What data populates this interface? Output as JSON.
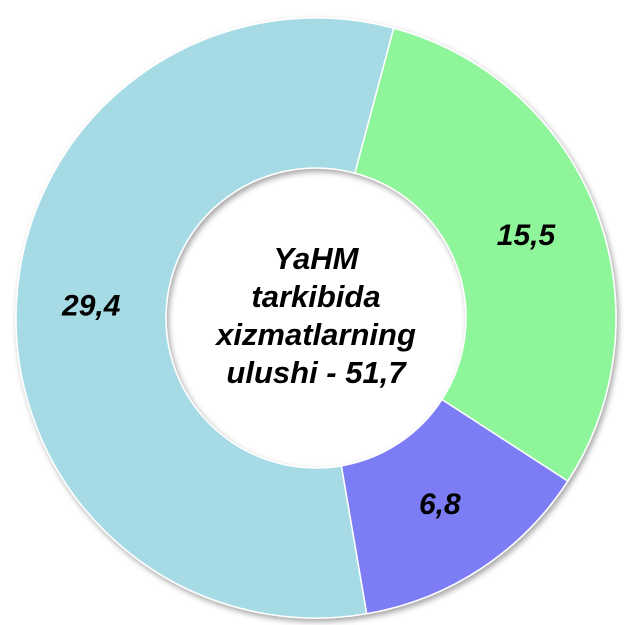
{
  "chart_data": {
    "type": "donut",
    "center_text": [
      "YaHM",
      "tarkibida",
      "xizmatlarning",
      "ulushi - 51,7"
    ],
    "categories": [
      null,
      null,
      null
    ],
    "values": [
      15.5,
      6.8,
      29.4
    ],
    "value_labels": [
      "15,5",
      "6,8",
      "29,4"
    ],
    "colors": [
      "#8ef59a",
      "#7b7bf5",
      "#a6dbe6"
    ]
  }
}
